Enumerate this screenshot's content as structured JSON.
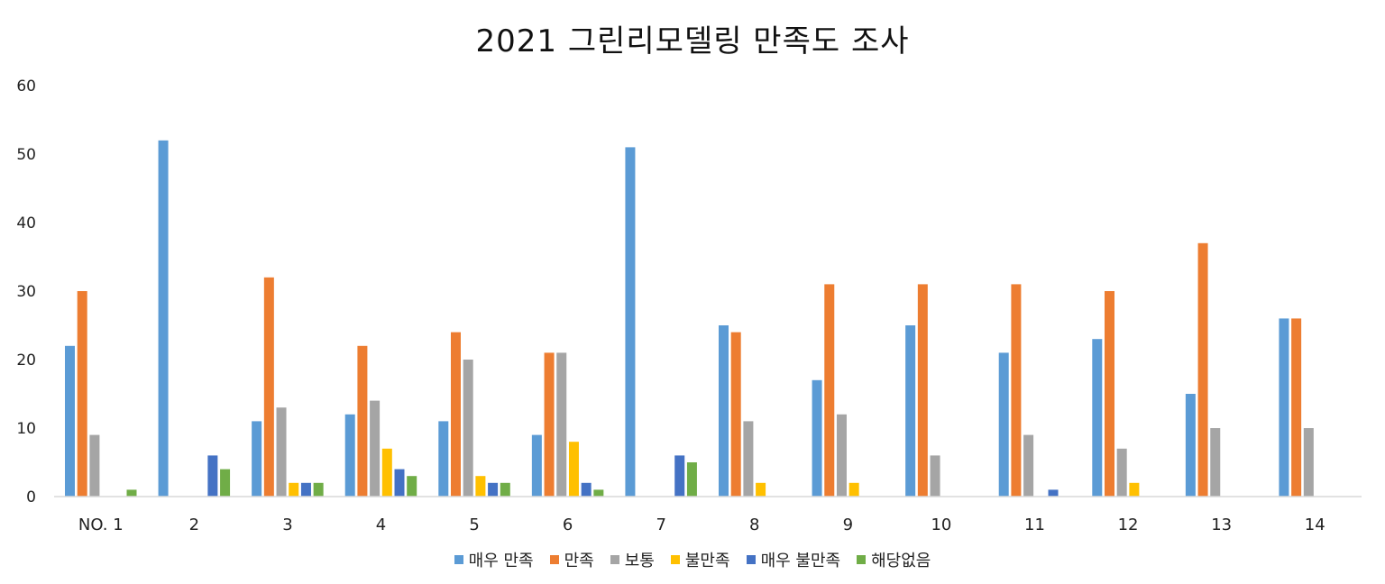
{
  "chart_data": {
    "type": "bar",
    "title": "2021 그린리모델링 만족도 조사",
    "xlabel": "",
    "ylabel": "",
    "ylim": [
      0,
      60
    ],
    "yticks": [
      0,
      10,
      20,
      30,
      40,
      50,
      60
    ],
    "grid": false,
    "legend_position": "bottom",
    "categories": [
      "NO. 1",
      "2",
      "3",
      "4",
      "5",
      "6",
      "7",
      "8",
      "9",
      "10",
      "11",
      "12",
      "13",
      "14"
    ],
    "series": [
      {
        "name": "매우 만족",
        "color": "#5B9BD5",
        "values": [
          22,
          52,
          11,
          12,
          11,
          9,
          51,
          25,
          17,
          25,
          21,
          23,
          15,
          26
        ]
      },
      {
        "name": "만족",
        "color": "#ED7D31",
        "values": [
          30,
          0,
          32,
          22,
          24,
          21,
          0,
          24,
          31,
          31,
          31,
          30,
          37,
          26
        ]
      },
      {
        "name": "보통",
        "color": "#A5A5A5",
        "values": [
          9,
          0,
          13,
          14,
          20,
          21,
          0,
          11,
          12,
          6,
          9,
          7,
          10,
          10
        ]
      },
      {
        "name": "불만족",
        "color": "#FFC000",
        "values": [
          0,
          0,
          2,
          7,
          3,
          8,
          0,
          2,
          2,
          0,
          0,
          2,
          0,
          0
        ]
      },
      {
        "name": "매우 불만족",
        "color": "#4472C4",
        "values": [
          0,
          6,
          2,
          4,
          2,
          2,
          6,
          0,
          0,
          0,
          1,
          0,
          0,
          0
        ]
      },
      {
        "name": "해당없음",
        "color": "#70AD47",
        "values": [
          1,
          4,
          2,
          3,
          2,
          1,
          5,
          0,
          0,
          0,
          0,
          0,
          0,
          0
        ]
      }
    ]
  }
}
